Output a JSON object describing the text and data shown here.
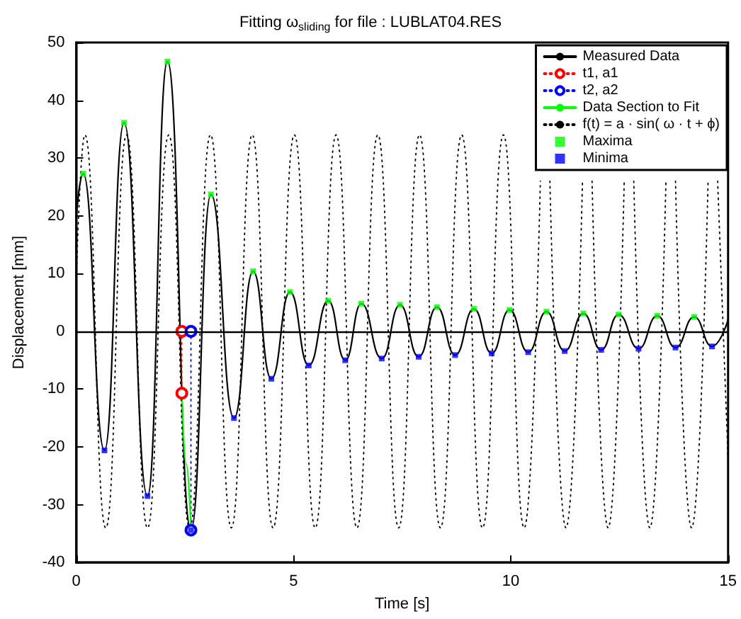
{
  "chart_data": {
    "type": "line",
    "title": "Fitting ω$_{sliding}$ for file : LUBLAT04.RES",
    "xlabel": "Time [s]",
    "ylabel": "Displacement [mm]",
    "xlim": [
      0,
      15
    ],
    "xticks": [
      0,
      5,
      10,
      15
    ],
    "ylim": [
      -40,
      50
    ],
    "yticks": [
      -40,
      -30,
      -20,
      -10,
      0,
      10,
      20,
      30,
      40,
      50
    ],
    "legend": "top right",
    "ref_lines": [
      {
        "axis": "y",
        "value": 0,
        "color": "#000000",
        "line_style": "solid"
      }
    ],
    "series": [
      {
        "name": "Measured Data",
        "color": "#000000",
        "type": "line",
        "marker": "none",
        "line_style": "solid",
        "x": [
          0,
          0.16,
          0.65,
          1.1,
          1.64,
          2.1,
          2.64,
          3.1,
          3.63,
          4.07,
          4.49,
          4.92,
          5.35,
          5.8,
          6.19,
          6.56,
          7.03,
          7.45,
          7.88,
          8.3,
          8.72,
          9.15,
          9.56,
          9.97,
          10.4,
          10.82,
          11.24,
          11.67,
          12.08,
          12.48,
          12.94,
          13.37,
          13.79,
          14.22,
          14.63,
          15
        ],
        "values": [
          19.7,
          27.3,
          -20.6,
          36.1,
          -28.5,
          46.7,
          -34.4,
          23.7,
          -15,
          10.4,
          -8.2,
          6.8,
          -5.9,
          5.3,
          -5,
          4.8,
          -4.7,
          4.6,
          -4.4,
          4.2,
          -4.1,
          3.9,
          -3.8,
          3.7,
          -3.6,
          3.4,
          -3.4,
          3.1,
          -3.2,
          2.9,
          -3,
          2.7,
          -2.8,
          2.5,
          -2.6,
          2
        ]
      },
      {
        "name": "t1, a1",
        "color": "#ff0000",
        "type": "line",
        "marker": "circle",
        "line_style": "dotted",
        "x": [
          2.43,
          2.43
        ],
        "values": [
          0,
          -10.7
        ]
      },
      {
        "name": "t2, a2",
        "color": "#0000ff",
        "type": "line",
        "marker": "circle",
        "line_style": "dotted",
        "x": [
          2.64,
          2.64
        ],
        "values": [
          0,
          -34.4
        ]
      },
      {
        "name": "Data Section to Fit",
        "color": "#00ff00",
        "type": "line",
        "marker": "none",
        "line_style": "solid",
        "x": [
          2.43,
          2.53,
          2.64
        ],
        "values": [
          -10.7,
          -23,
          -34.4
        ]
      },
      {
        "name": "f(t) = a · sin( ω · t + ϕ)",
        "color": "#000000",
        "type": "line",
        "marker": "none",
        "line_style": "dotted",
        "x": [
          0,
          0.2,
          0.68,
          1.16,
          1.64,
          2.13,
          2.61,
          3.09,
          3.57,
          4.05,
          4.53,
          5.02,
          5.5,
          5.98,
          6.46,
          6.94,
          7.42,
          7.9,
          8.38,
          8.87,
          9.35,
          9.83,
          10.31,
          10.68,
          10.79,
          10.9,
          11.27,
          11.65,
          11.76,
          11.87,
          12.24,
          12.61,
          12.72,
          12.83,
          13.2,
          13.57,
          13.68,
          13.79,
          14.16,
          14.54,
          14.65,
          14.76,
          15
        ],
        "values": [
          8.8,
          34,
          -34,
          34,
          -34,
          34,
          -34,
          34,
          -34,
          34,
          -34,
          34,
          -34,
          34,
          -34,
          34,
          -34,
          34,
          -34,
          34,
          -34,
          34,
          -34,
          26,
          null,
          26,
          -34,
          26,
          null,
          26,
          -34,
          26,
          null,
          26,
          -34,
          26,
          null,
          26,
          -34,
          26,
          null,
          26,
          -22.3
        ]
      },
      {
        "name": "Maxima",
        "color": "#00ff00",
        "type": "scatter",
        "marker": "square",
        "x": [
          0.16,
          1.1,
          2.1,
          3.1,
          4.07,
          4.92,
          5.8,
          6.56,
          7.45,
          8.3,
          9.15,
          9.97,
          10.82,
          11.67,
          12.48,
          13.37,
          14.22
        ],
        "values": [
          27.3,
          36.1,
          46.7,
          23.7,
          10.4,
          6.8,
          5.3,
          4.8,
          4.6,
          4.2,
          3.9,
          3.7,
          3.4,
          3.1,
          2.9,
          2.7,
          2.5
        ]
      },
      {
        "name": "Minima",
        "color": "#0000ff",
        "type": "scatter",
        "marker": "square",
        "x": [
          0.65,
          1.64,
          2.64,
          3.63,
          4.49,
          5.35,
          6.19,
          7.03,
          7.88,
          8.72,
          9.56,
          10.4,
          11.24,
          12.08,
          12.94,
          13.79,
          14.63
        ],
        "values": [
          -20.6,
          -28.5,
          -34.4,
          -15,
          -8.2,
          -5.9,
          -5,
          -4.7,
          -4.4,
          -4.1,
          -3.8,
          -3.6,
          -3.4,
          -3.2,
          -3,
          -2.8,
          -2.6
        ]
      }
    ]
  }
}
